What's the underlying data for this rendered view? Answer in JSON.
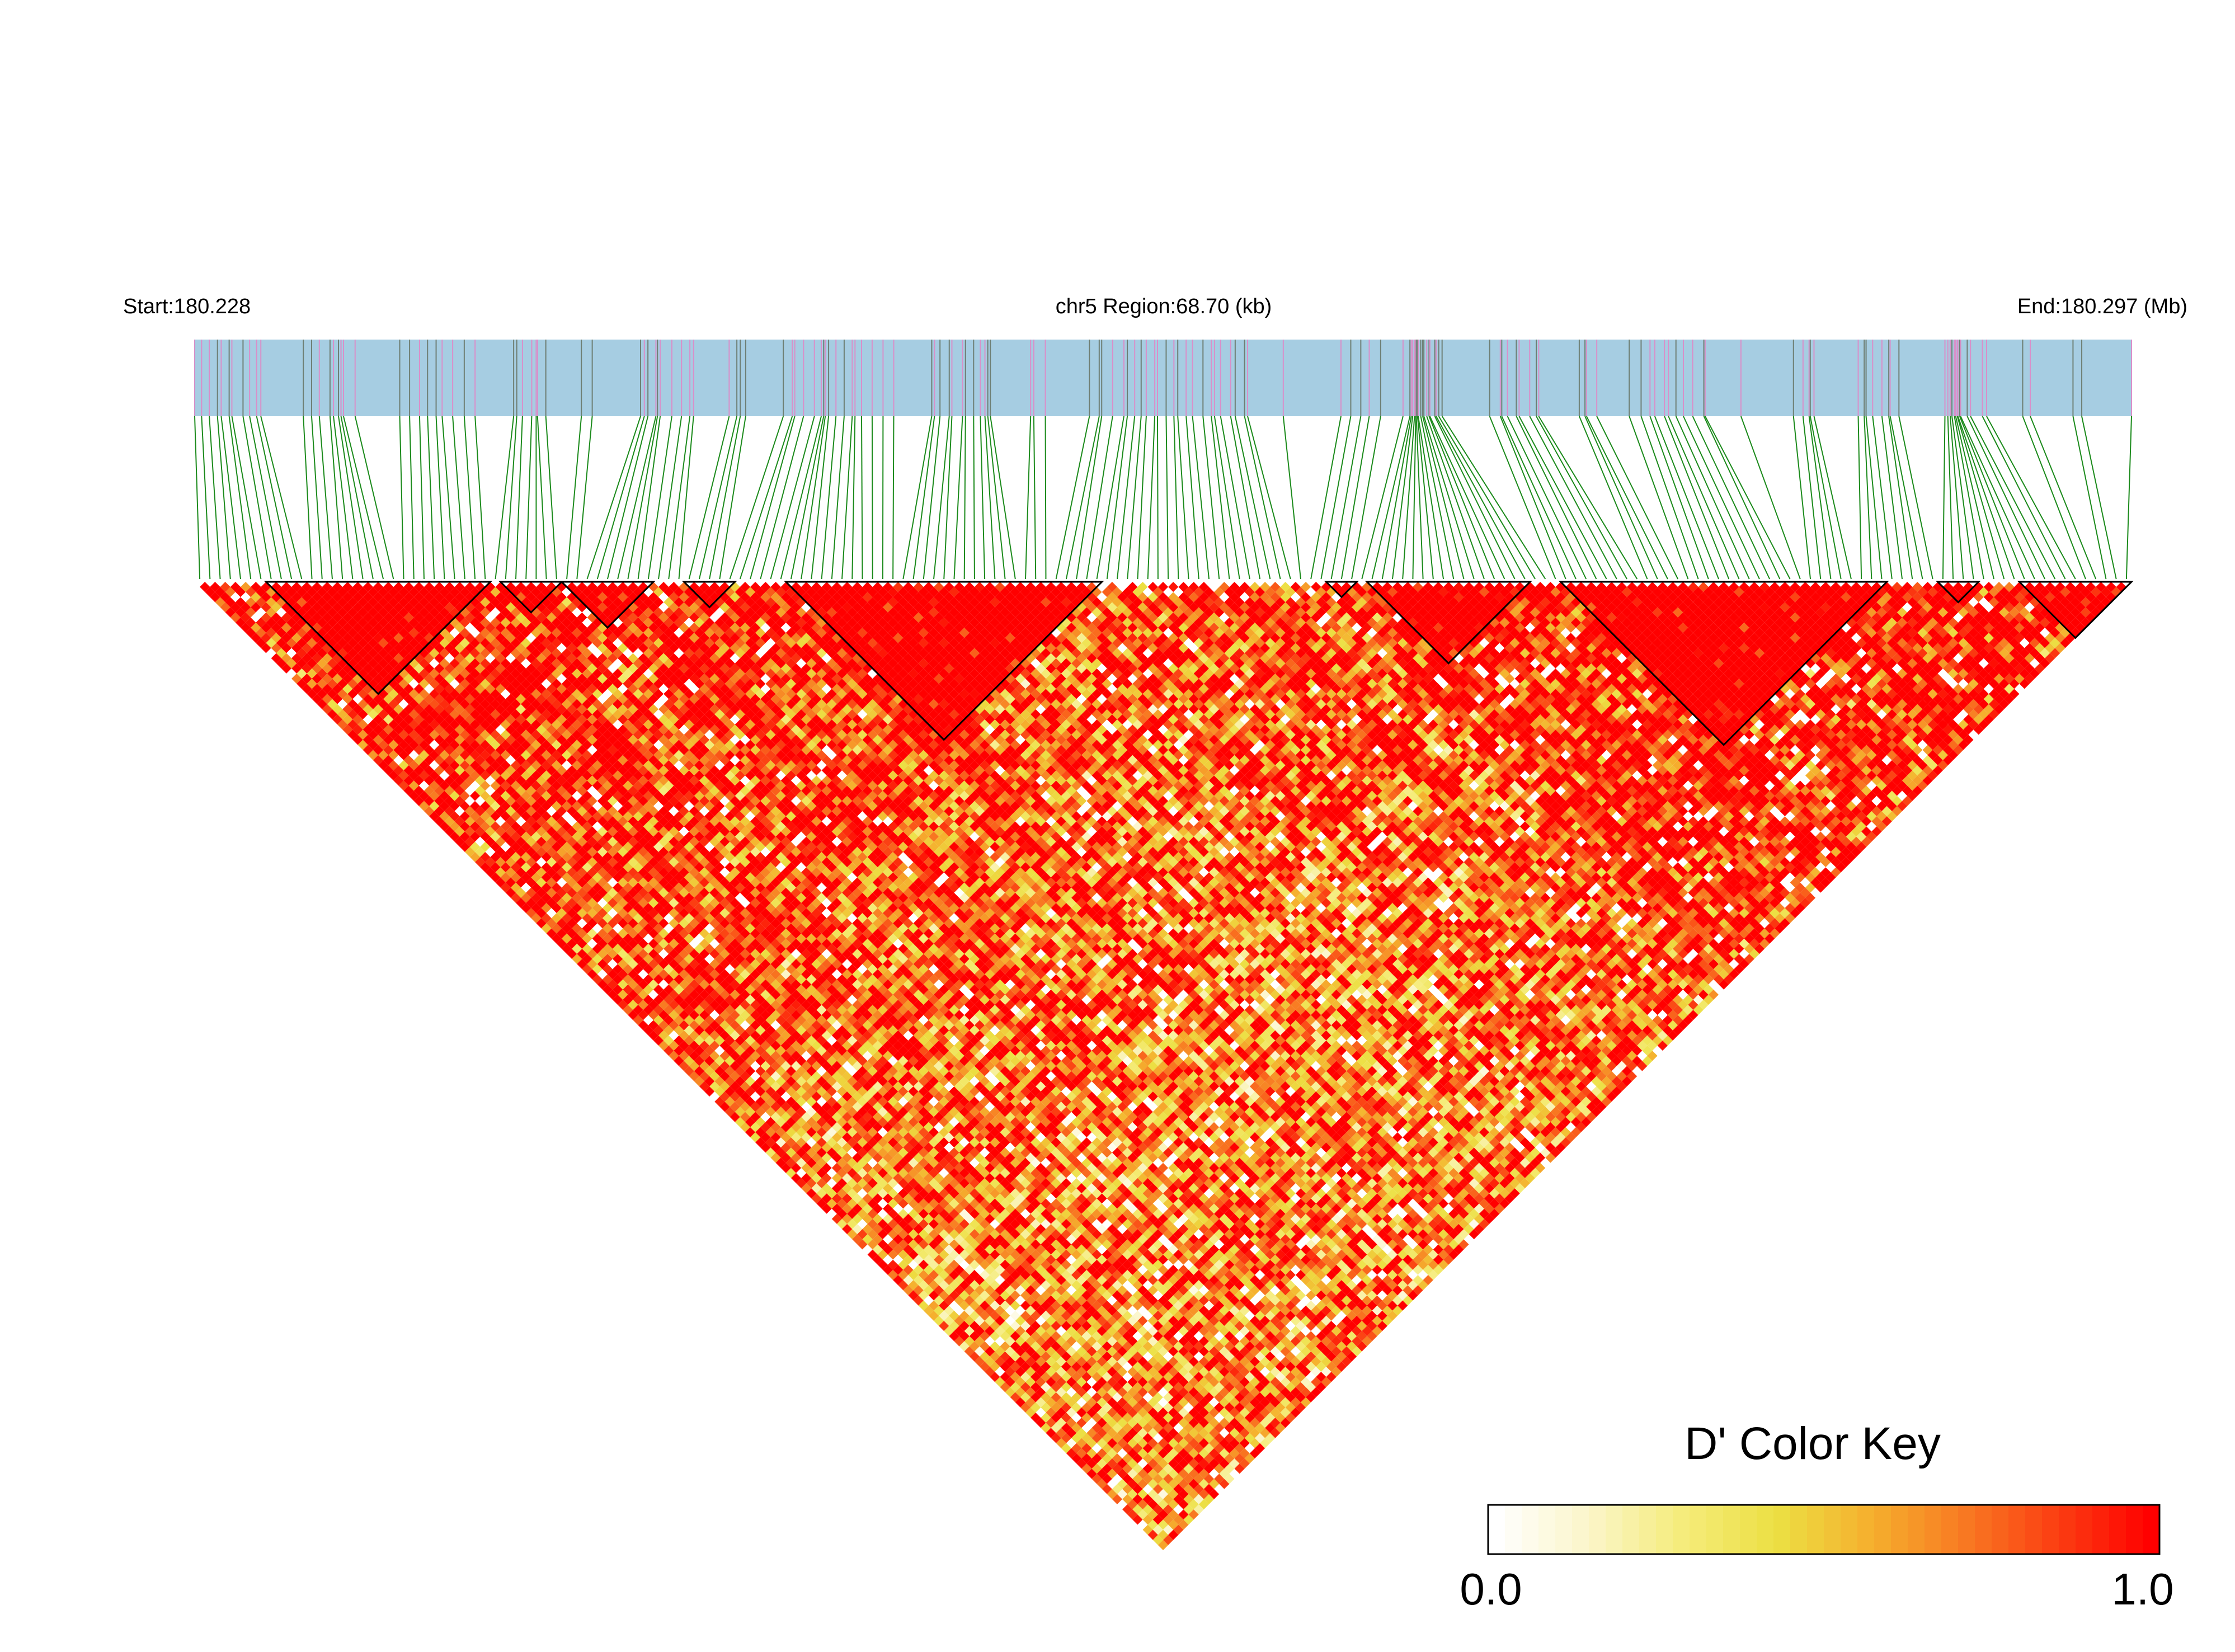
{
  "header": {
    "start_label": "Start:180.228",
    "region_label": "chr5 Region:68.70 (kb)",
    "end_label": "End:180.297 (Mb)"
  },
  "colors": {
    "track_background": "#a6cde2",
    "snp_tick_pink": "#d98fc9",
    "snp_tick_gray": "#6e7f74",
    "connector_green": "#1b8a1b",
    "ld_high": "#ff0000",
    "ld_mid": "#f0e24a",
    "ld_low": "#ffffff",
    "block_outline": "#000000"
  },
  "chart_data": {
    "type": "heatmap",
    "description_type": "LD heatmap (D')",
    "chromosome": "chr5",
    "region_start_mb": 180.228,
    "region_end_mb": 180.297,
    "region_length_kb": 68.7,
    "snp_count": 190,
    "color_key": {
      "title": "D' Color Key",
      "min_label": "0.0",
      "max_label": "1.0",
      "min": 0.0,
      "max": 1.0,
      "stops": [
        "#ffffff",
        "#fbf5c8",
        "#f5ec7a",
        "#ecdf43",
        "#f5b02e",
        "#f87a22",
        "#fb3d12",
        "#ff0000"
      ]
    },
    "haplotype_blocks_snp_ranges": [
      [
        8,
        29
      ],
      [
        31,
        36
      ],
      [
        37,
        45
      ],
      [
        49,
        53
      ],
      [
        59,
        89
      ],
      [
        112,
        114
      ],
      [
        116,
        131
      ],
      [
        135,
        166
      ],
      [
        172,
        175
      ],
      [
        180,
        190
      ]
    ]
  }
}
